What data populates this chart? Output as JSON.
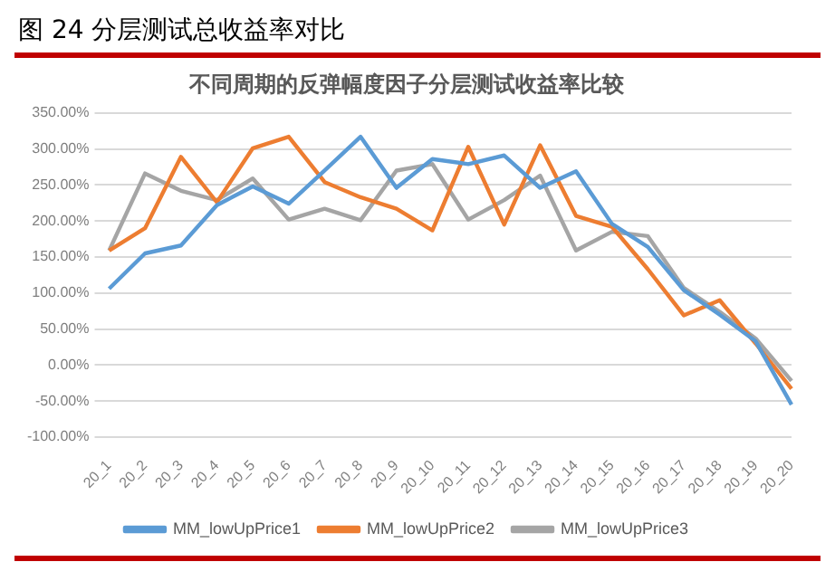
{
  "chart_data": {
    "type": "line",
    "title": "图 24  分层测试总收益率对比",
    "subtitle": "不同周期的反弹幅度因子分层测试收益率比较",
    "categories": [
      "20_1",
      "20_2",
      "20_3",
      "20_4",
      "20_5",
      "20_6",
      "20_7",
      "20_8",
      "20_9",
      "20_10",
      "20_11",
      "20_12",
      "20_13",
      "20_14",
      "20_15",
      "20_16",
      "20_17",
      "20_18",
      "20_19",
      "20_20"
    ],
    "series": [
      {
        "name": "MM_lowUpPrice1",
        "color": "#5b9bd5",
        "values": [
          106,
          155,
          166,
          222,
          248,
          224,
          270,
          317,
          246,
          286,
          279,
          291,
          246,
          269,
          196,
          164,
          104,
          70,
          33,
          -55
        ]
      },
      {
        "name": "MM_lowUpPrice2",
        "color": "#ed7d31",
        "values": [
          159,
          190,
          289,
          226,
          301,
          317,
          254,
          233,
          217,
          187,
          303,
          195,
          305,
          207,
          192,
          133,
          69,
          90,
          30,
          -33
        ]
      },
      {
        "name": "MM_lowUpPrice3",
        "color": "#a5a5a5",
        "values": [
          159,
          266,
          242,
          229,
          259,
          202,
          217,
          201,
          270,
          279,
          202,
          229,
          263,
          159,
          185,
          179,
          107,
          74,
          37,
          -22
        ]
      }
    ],
    "ylim": [
      -100,
      350
    ],
    "yticks": [
      {
        "value": -100,
        "label": "-100.00%"
      },
      {
        "value": -50,
        "label": "-50.00%"
      },
      {
        "value": 0,
        "label": "0.00%"
      },
      {
        "value": 50,
        "label": "50.00%"
      },
      {
        "value": 100,
        "label": "100.00%"
      },
      {
        "value": 150,
        "label": "150.00%"
      },
      {
        "value": 200,
        "label": "200.00%"
      },
      {
        "value": 250,
        "label": "250.00%"
      },
      {
        "value": 300,
        "label": "300.00%"
      },
      {
        "value": 350,
        "label": "350.00%"
      }
    ],
    "grid": "y",
    "legend": "bottom",
    "marker": "none",
    "line_style": "solid"
  }
}
